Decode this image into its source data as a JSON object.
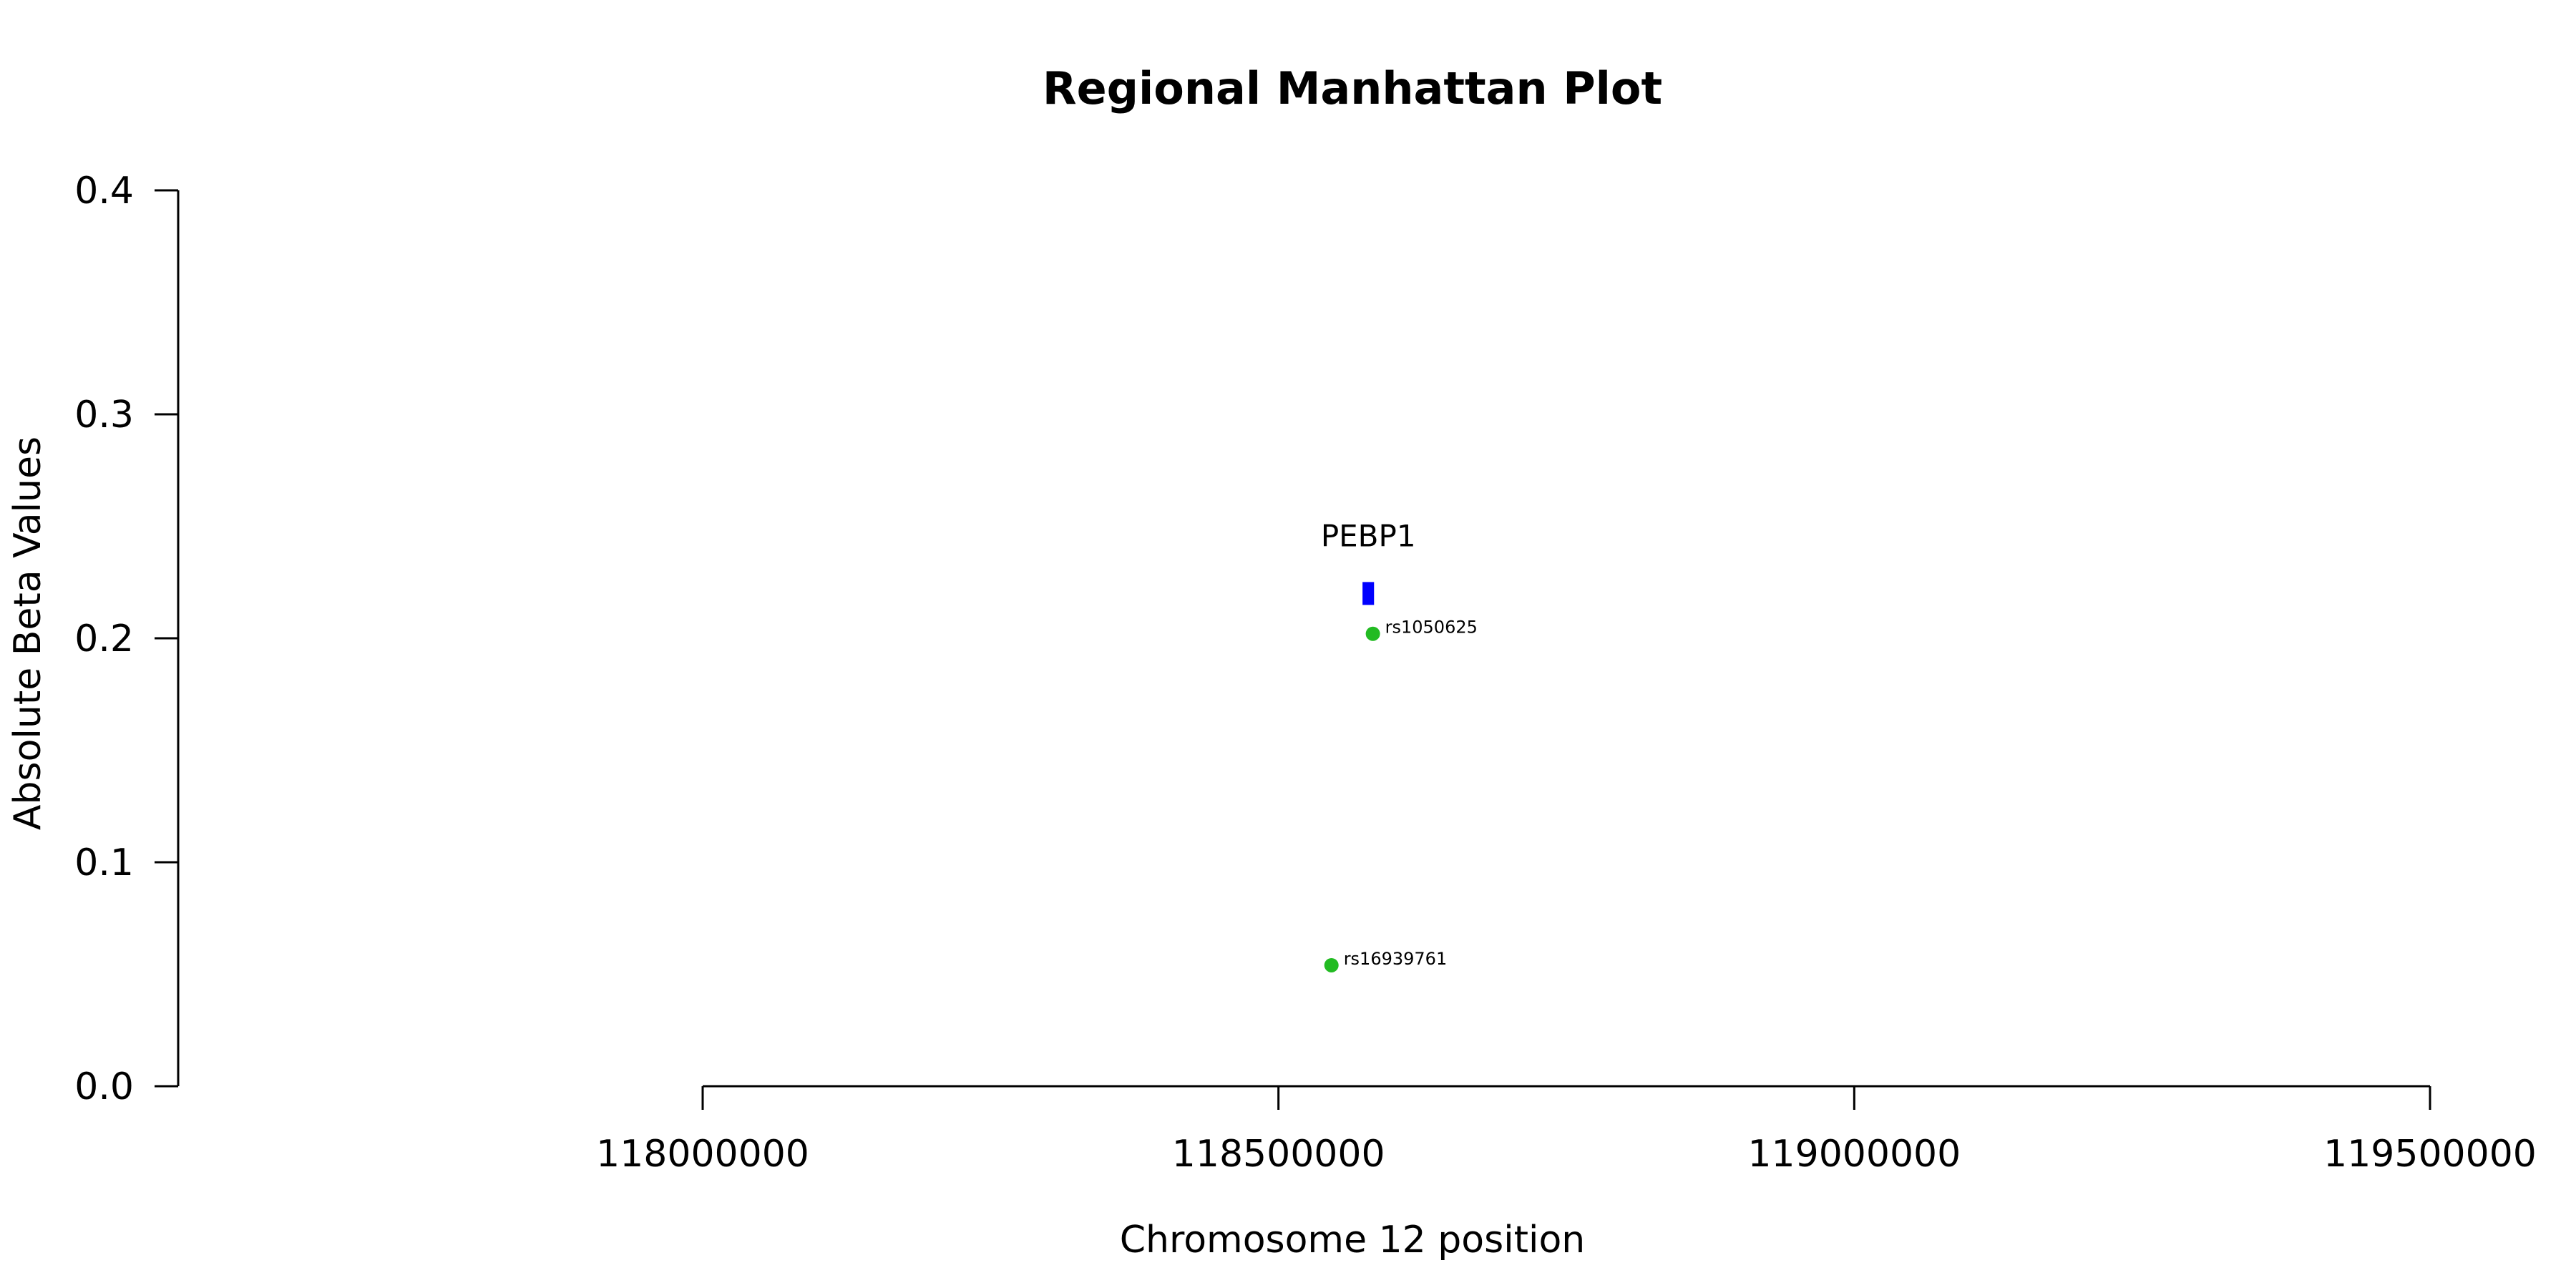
{
  "chart_data": {
    "type": "scatter",
    "title": "Regional Manhattan Plot",
    "xlabel": "Chromosome 12 position",
    "ylabel": "Absolute Beta Values",
    "xlim": [
      117500000,
      119700000
    ],
    "ylim": [
      0,
      0.4
    ],
    "x_ticks": [
      {
        "value": 118000000,
        "label": "118000000"
      },
      {
        "value": 118500000,
        "label": "118500000"
      },
      {
        "value": 119000000,
        "label": "119000000"
      },
      {
        "value": 119500000,
        "label": "119500000"
      }
    ],
    "y_ticks": [
      {
        "value": 0.0,
        "label": "0.0"
      },
      {
        "value": 0.1,
        "label": "0.1"
      },
      {
        "value": 0.2,
        "label": "0.2"
      },
      {
        "value": 0.3,
        "label": "0.3"
      },
      {
        "value": 0.4,
        "label": "0.4"
      }
    ],
    "points": [
      {
        "label": "rs1050625",
        "x": 118582000,
        "y": 0.202,
        "color": "#22bb22"
      },
      {
        "label": "rs16939761",
        "x": 118546000,
        "y": 0.054,
        "color": "#22bb22"
      }
    ],
    "genes": [
      {
        "name": "PEBP1",
        "start": 118573000,
        "end": 118583000,
        "y": 0.22,
        "color": "#0000ff"
      }
    ],
    "grid": false,
    "legend": "none"
  }
}
